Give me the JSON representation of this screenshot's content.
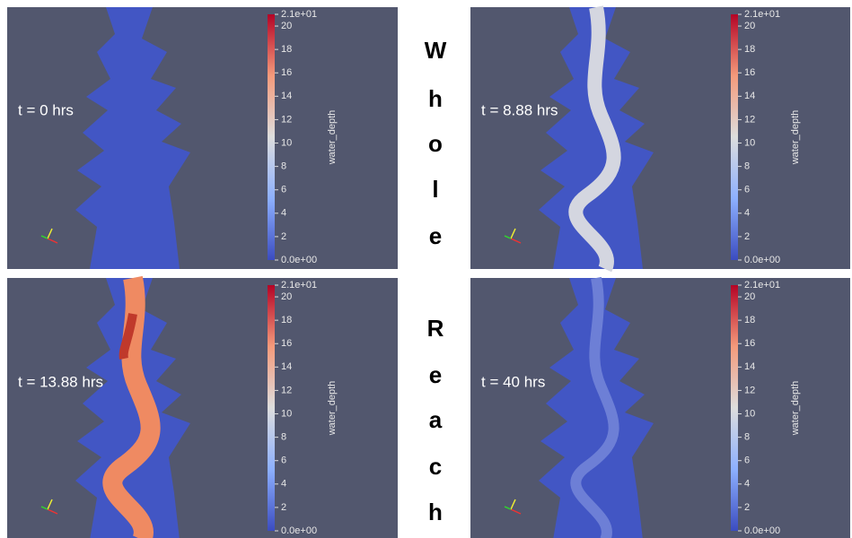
{
  "side_text": [
    "W",
    "h",
    "o",
    "l",
    "e",
    "R",
    "e",
    "a",
    "c",
    "h"
  ],
  "panels": [
    {
      "time_label": "t = 0 hrs",
      "colorbar": {
        "title": "water_depth",
        "ticks": [
          {
            "value": 21,
            "label": "2.1e+01"
          },
          20,
          18,
          16,
          14,
          12,
          10,
          8,
          6,
          4,
          2,
          {
            "value": 0,
            "label": "0.0e+00"
          }
        ]
      }
    },
    {
      "time_label": "t = 8.88 hrs",
      "colorbar": {
        "title": "water_depth",
        "ticks": [
          {
            "value": 21,
            "label": "2.1e+01"
          },
          20,
          18,
          16,
          14,
          12,
          10,
          8,
          6,
          4,
          2,
          {
            "value": 0,
            "label": "0.0e+00"
          }
        ]
      }
    },
    {
      "time_label": "t = 13.88 hrs",
      "colorbar": {
        "title": "water_depth",
        "ticks": [
          {
            "value": 21,
            "label": "2.1e+01"
          },
          20,
          18,
          16,
          14,
          12,
          10,
          8,
          6,
          4,
          2,
          {
            "value": 0,
            "label": "0.0e+00"
          }
        ]
      }
    },
    {
      "time_label": "t = 40 hrs",
      "colorbar": {
        "title": "water_depth",
        "ticks": [
          {
            "value": 21,
            "label": "2.1e+01"
          },
          20,
          18,
          16,
          14,
          12,
          10,
          8,
          6,
          4,
          2,
          {
            "value": 0,
            "label": "0.0e+00"
          }
        ]
      }
    }
  ]
}
